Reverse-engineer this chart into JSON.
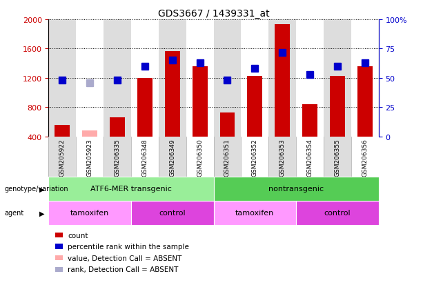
{
  "title": "GDS3667 / 1439331_at",
  "samples": [
    "GSM205922",
    "GSM205923",
    "GSM206335",
    "GSM206348",
    "GSM206349",
    "GSM206350",
    "GSM206351",
    "GSM206352",
    "GSM206353",
    "GSM206354",
    "GSM206355",
    "GSM206356"
  ],
  "counts": [
    560,
    null,
    660,
    1200,
    1570,
    1360,
    730,
    1230,
    1930,
    840,
    1230,
    1360
  ],
  "counts_absent": [
    null,
    480,
    null,
    null,
    null,
    null,
    null,
    null,
    null,
    null,
    null,
    null
  ],
  "percentile_ranks": [
    48,
    null,
    48,
    60,
    65,
    63,
    48,
    58,
    72,
    53,
    60,
    63
  ],
  "percentile_ranks_absent": [
    null,
    46,
    null,
    null,
    null,
    null,
    null,
    null,
    null,
    null,
    null,
    null
  ],
  "ylim_left": [
    400,
    2000
  ],
  "ylim_right": [
    0,
    100
  ],
  "yticks_left": [
    400,
    800,
    1200,
    1600,
    2000
  ],
  "yticks_right": [
    0,
    25,
    50,
    75,
    100
  ],
  "bar_color": "#cc0000",
  "bar_absent_color": "#ffaaaa",
  "marker_color": "#0000cc",
  "marker_absent_color": "#aaaacc",
  "plot_bg_color": "#ffffff",
  "grid_color": "#000000",
  "col_bg_even": "#dddddd",
  "col_bg_odd": "#ffffff",
  "genotype_groups": [
    {
      "label": "ATF6-MER transgenic",
      "start": 0,
      "end": 5,
      "color": "#99ee99"
    },
    {
      "label": "nontransgenic",
      "start": 6,
      "end": 11,
      "color": "#55cc55"
    }
  ],
  "agent_groups": [
    {
      "label": "tamoxifen",
      "start": 0,
      "end": 2,
      "color": "#ff99ff"
    },
    {
      "label": "control",
      "start": 3,
      "end": 5,
      "color": "#dd44dd"
    },
    {
      "label": "tamoxifen",
      "start": 6,
      "end": 8,
      "color": "#ff99ff"
    },
    {
      "label": "control",
      "start": 9,
      "end": 11,
      "color": "#dd44dd"
    }
  ],
  "legend_items": [
    {
      "label": "count",
      "color": "#cc0000"
    },
    {
      "label": "percentile rank within the sample",
      "color": "#0000cc"
    },
    {
      "label": "value, Detection Call = ABSENT",
      "color": "#ffaaaa"
    },
    {
      "label": "rank, Detection Call = ABSENT",
      "color": "#aaaacc"
    }
  ],
  "left_axis_color": "#cc0000",
  "right_axis_color": "#0000cc",
  "bar_width": 0.55,
  "marker_size": 7,
  "n_samples": 12
}
